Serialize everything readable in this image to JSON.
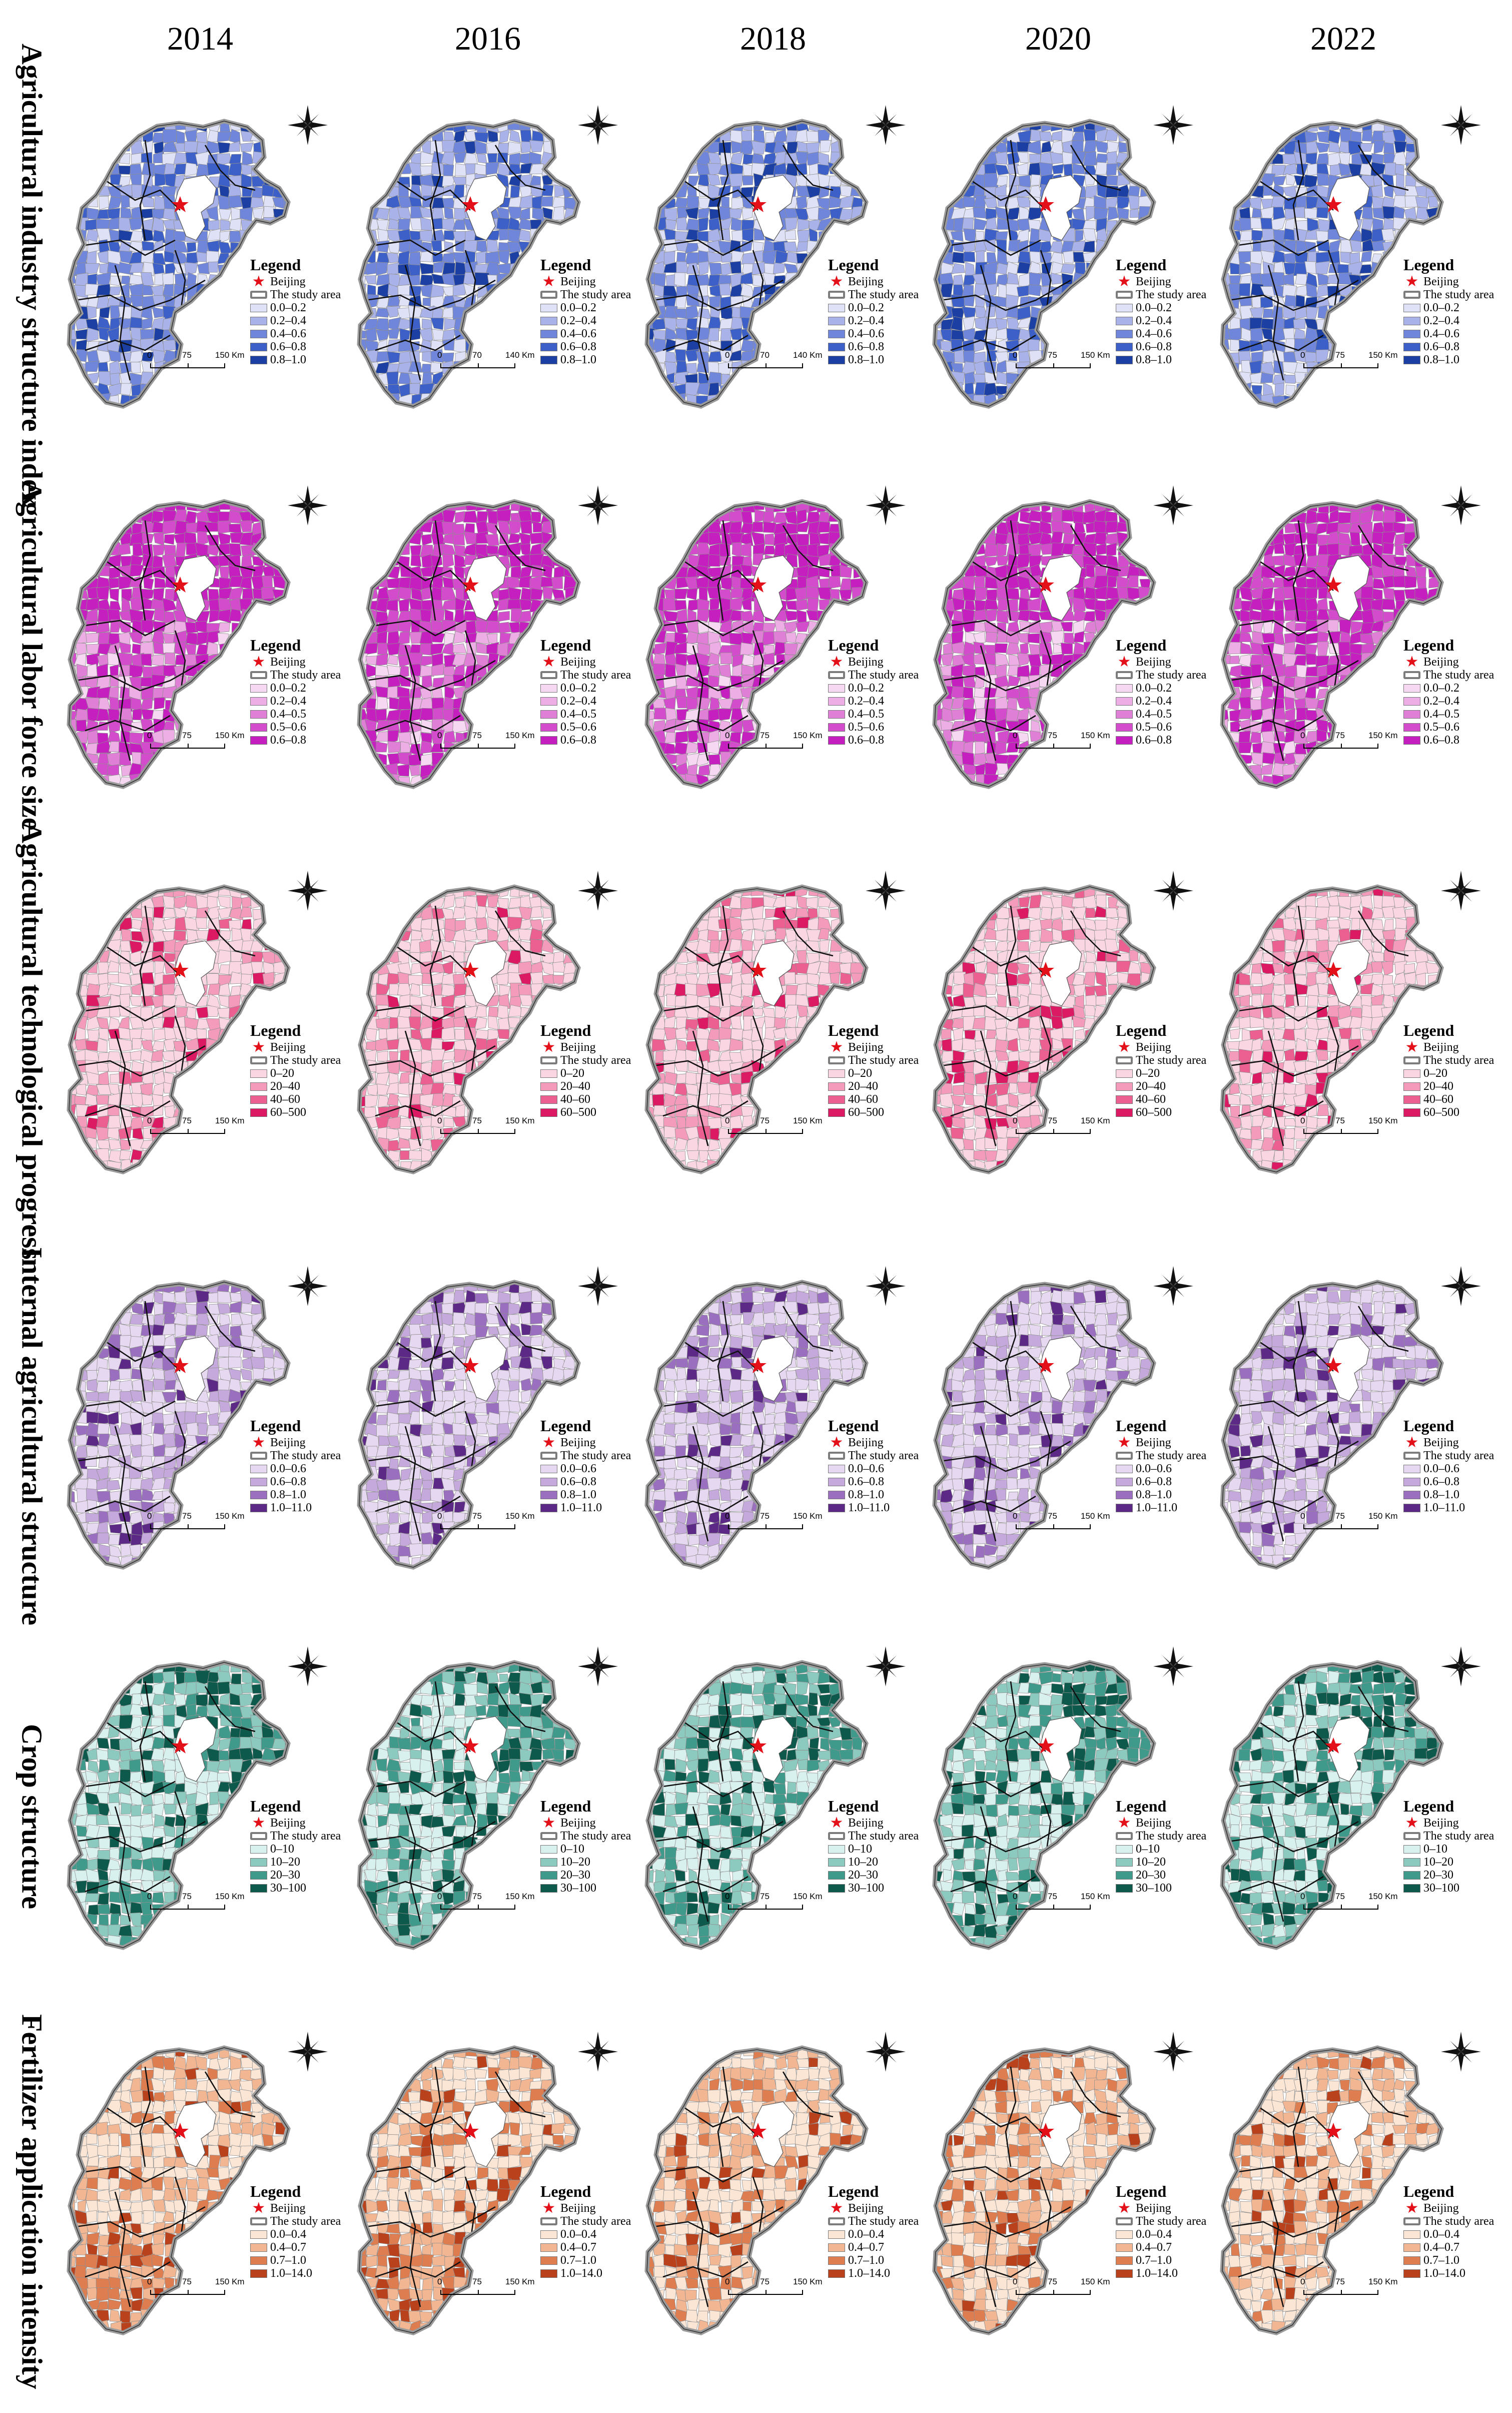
{
  "years": [
    "2014",
    "2016",
    "2018",
    "2020",
    "2022"
  ],
  "legend_title": "Legend",
  "beijing_label": "Beijing",
  "study_area_label": "The study area",
  "rows": [
    {
      "label": "Agricultural industry structure index",
      "classes": [
        "0.0–0.2",
        "0.2–0.4",
        "0.4–0.6",
        "0.6–0.8",
        "0.8–1.0"
      ],
      "colors": [
        "#dfe1f6",
        "#a9b3ea",
        "#6f86da",
        "#3d60c8",
        "#1c3fa3"
      ],
      "weights": [
        0.18,
        0.3,
        0.28,
        0.16,
        0.08
      ],
      "scales": [
        [
          "0",
          "75",
          "150 Km"
        ],
        [
          "0",
          "70",
          "140 Km"
        ],
        [
          "0",
          "70",
          "140 Km"
        ],
        [
          "0",
          "75",
          "150 Km"
        ],
        [
          "0",
          "75",
          "150 Km"
        ]
      ]
    },
    {
      "label": "Agricultural labor force size",
      "classes": [
        "0.0–0.2",
        "0.2–0.4",
        "0.4–0.5",
        "0.5–0.6",
        "0.6–0.8"
      ],
      "colors": [
        "#f6d8f2",
        "#ecaee4",
        "#df7fd6",
        "#d24ccc",
        "#c51fbf"
      ],
      "weights": [
        0.08,
        0.14,
        0.2,
        0.26,
        0.32
      ],
      "scales": [
        [
          "0",
          "75",
          "150 Km"
        ],
        [
          "0",
          "75",
          "150 Km"
        ],
        [
          "0",
          "75",
          "150 Km"
        ],
        [
          "0",
          "75",
          "150 Km"
        ],
        [
          "0",
          "75",
          "150 Km"
        ]
      ]
    },
    {
      "label": "Agricultural technological progress",
      "classes": [
        "0–20",
        "20–40",
        "40–60",
        "60–500"
      ],
      "colors": [
        "#fad5e2",
        "#f49bbb",
        "#ec5f91",
        "#dc1a63"
      ],
      "weights": [
        0.62,
        0.24,
        0.09,
        0.05
      ],
      "scales": [
        [
          "0",
          "75",
          "150 Km"
        ],
        [
          "0",
          "75",
          "150 Km"
        ],
        [
          "0",
          "75",
          "150 Km"
        ],
        [
          "0",
          "75",
          "150 Km"
        ],
        [
          "0",
          "75",
          "150 Km"
        ]
      ]
    },
    {
      "label": "Internal agricultural structure",
      "classes": [
        "0.0–0.6",
        "0.6–0.8",
        "0.8–1.0",
        "1.0–11.0"
      ],
      "colors": [
        "#e7d8f1",
        "#c6a9dc",
        "#9a6fbf",
        "#5c2a86"
      ],
      "weights": [
        0.56,
        0.24,
        0.13,
        0.07
      ],
      "scales": [
        [
          "0",
          "75",
          "150 Km"
        ],
        [
          "0",
          "75",
          "150 Km"
        ],
        [
          "0",
          "75",
          "150 Km"
        ],
        [
          "0",
          "75",
          "150 Km"
        ],
        [
          "0",
          "75",
          "150 Km"
        ]
      ]
    },
    {
      "label": "Crop structure",
      "classes": [
        "0–10",
        "10–20",
        "20–30",
        "30–100"
      ],
      "colors": [
        "#d8f1ee",
        "#8ccabf",
        "#3f9a8b",
        "#0d5a4c"
      ],
      "weights": [
        0.46,
        0.22,
        0.16,
        0.16
      ],
      "scales": [
        [
          "0",
          "75",
          "150 Km"
        ],
        [
          "0",
          "75",
          "150 Km"
        ],
        [
          "0",
          "75",
          "150 Km"
        ],
        [
          "0",
          "75",
          "150 Km"
        ],
        [
          "0",
          "75",
          "150 Km"
        ]
      ]
    },
    {
      "label": "Fertilizer application intensity",
      "classes": [
        "0.0–0.4",
        "0.4–0.7",
        "0.7–1.0",
        "1.0–14.0"
      ],
      "colors": [
        "#fbe5d4",
        "#f2b692",
        "#de7d4f",
        "#b9421c"
      ],
      "weights": [
        0.5,
        0.28,
        0.14,
        0.08
      ],
      "scales": [
        [
          "0",
          "75",
          "150 Km"
        ],
        [
          "0",
          "75",
          "150 Km"
        ],
        [
          "0",
          "75",
          "150 Km"
        ],
        [
          "0",
          "75",
          "150 Km"
        ],
        [
          "0",
          "75",
          "150 Km"
        ]
      ]
    }
  ]
}
